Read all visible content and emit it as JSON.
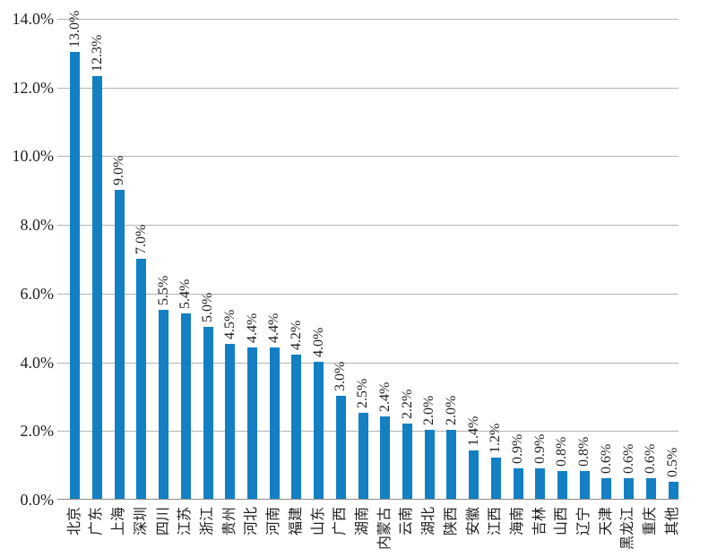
{
  "chart_data": {
    "type": "bar",
    "title": "",
    "xlabel": "",
    "ylabel": "",
    "legend": "none",
    "grid": true,
    "categories": [
      "北京",
      "广东",
      "上海",
      "深圳",
      "四川",
      "江苏",
      "浙江",
      "贵州",
      "河北",
      "河南",
      "福建",
      "山东",
      "广西",
      "湖南",
      "内蒙古",
      "云南",
      "湖北",
      "陕西",
      "安徽",
      "江西",
      "海南",
      "吉林",
      "山西",
      "辽宁",
      "天津",
      "黑龙江",
      "重庆",
      "其他"
    ],
    "values": [
      13.0,
      12.3,
      9.0,
      7.0,
      5.5,
      5.4,
      5.0,
      4.5,
      4.4,
      4.4,
      4.2,
      4.0,
      3.0,
      2.5,
      2.4,
      2.2,
      2.0,
      2.0,
      1.4,
      1.2,
      0.9,
      0.9,
      0.8,
      0.8,
      0.6,
      0.6,
      0.6,
      0.5
    ],
    "data_labels": [
      "13.0%",
      "12.3%",
      "9.0%",
      "7.0%",
      "5.5%",
      "5.4%",
      "5.0%",
      "4.5%",
      "4.4%",
      "4.4%",
      "4.2%",
      "4.0%",
      "3.0%",
      "2.5%",
      "2.4%",
      "2.2%",
      "2.0%",
      "2.0%",
      "1.4%",
      "1.2%",
      "0.9%",
      "0.9%",
      "0.8%",
      "0.8%",
      "0.6%",
      "0.6%",
      "0.6%",
      "0.5%"
    ],
    "y_axis": {
      "min": 0,
      "max": 14,
      "step": 2,
      "tick_labels": [
        "0.0%",
        "2.0%",
        "4.0%",
        "6.0%",
        "8.0%",
        "10.0%",
        "12.0%",
        "14.0%"
      ]
    },
    "label_orientation": "rotated-90-bottom-to-top",
    "colors": {
      "bar": "#1380C4",
      "gridline": "#B3B3B3",
      "axis_line": "#8C8C8C",
      "text": "#1F1F1F",
      "background": "#FFFFFF"
    }
  }
}
